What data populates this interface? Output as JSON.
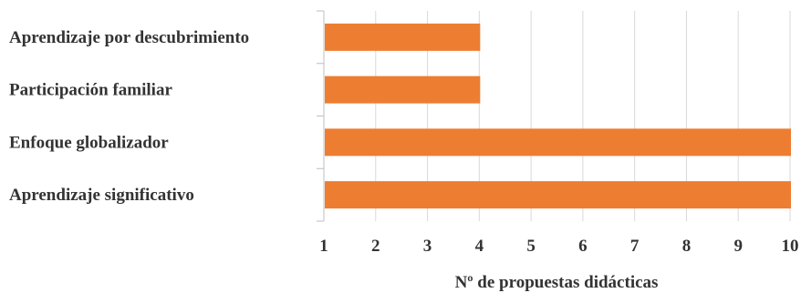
{
  "chart_data": {
    "type": "bar",
    "orientation": "horizontal",
    "categories": [
      "Aprendizaje por descubrimiento",
      "Participación familiar",
      "Enfoque globalizador",
      "Aprendizaje significativo"
    ],
    "values": [
      4,
      4,
      10,
      10
    ],
    "xlabel": "Nº de propuestas didácticas",
    "ylabel": "",
    "xlim": [
      1,
      10
    ],
    "xticks": [
      "1",
      "2",
      "3",
      "4",
      "5",
      "6",
      "7",
      "8",
      "9",
      "10"
    ],
    "grid": true,
    "legend": "none",
    "bar_color": "#ED7D31",
    "grid_color": "#D9D9D9"
  }
}
